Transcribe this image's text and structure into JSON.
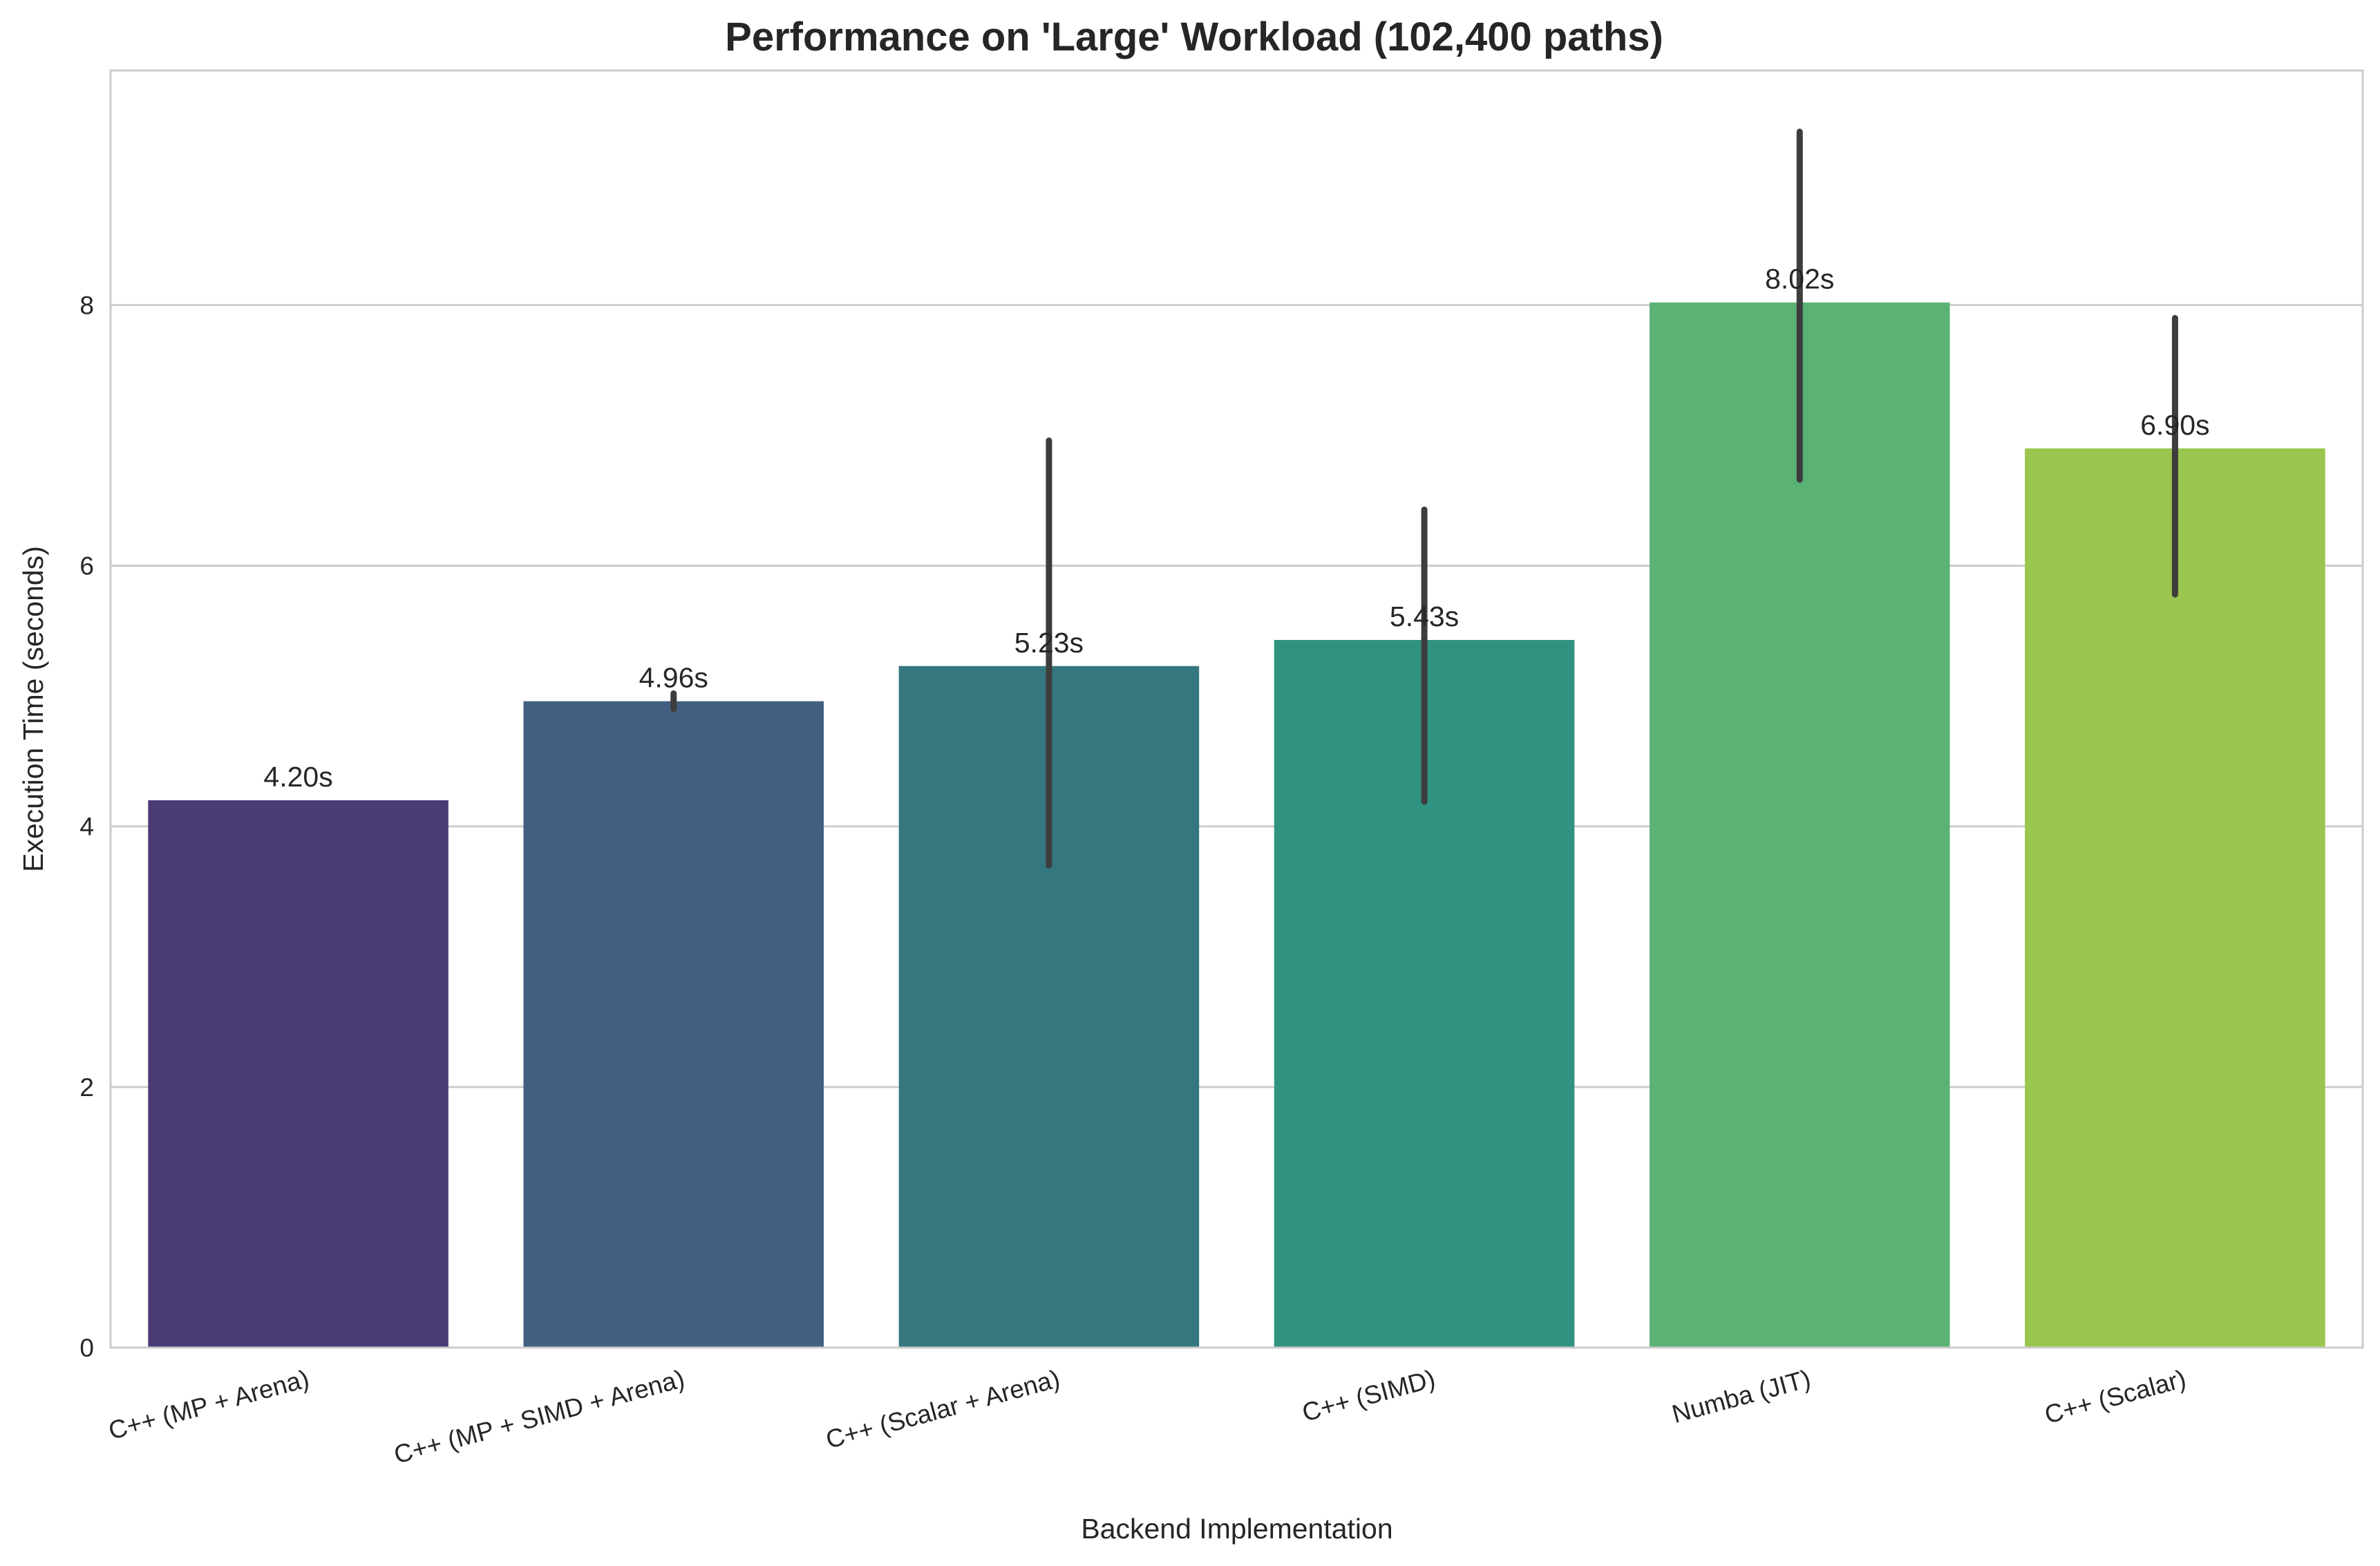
{
  "chart_data": {
    "type": "bar",
    "title": "Performance on 'Large' Workload (102,400 paths)",
    "xlabel": "Backend Implementation",
    "ylabel": "Execution Time (seconds)",
    "ylim": [
      0,
      9.8
    ],
    "yticks": [
      0,
      2,
      4,
      6,
      8
    ],
    "grid": "horizontal",
    "categories": [
      "C++ (MP + Arena)",
      "C++ (MP + SIMD + Arena)",
      "C++ (Scalar + Arena)",
      "C++ (SIMD)",
      "Numba (JIT)",
      "C++ (Scalar)"
    ],
    "values": [
      4.2,
      4.96,
      5.23,
      5.43,
      8.02,
      6.9
    ],
    "labels": [
      "4.20s",
      "4.96s",
      "5.23s",
      "5.43s",
      "8.02s",
      "6.90s"
    ],
    "error_low": [
      4.2,
      4.9,
      3.7,
      4.19,
      6.66,
      5.78
    ],
    "error_high": [
      4.2,
      5.02,
      6.96,
      6.43,
      9.33,
      7.9
    ],
    "colors": [
      "#4a3b75",
      "#425f81",
      "#35777f",
      "#309280",
      "#5ab274",
      "#9ac54e"
    ],
    "error_color": "#3d3d3d"
  }
}
